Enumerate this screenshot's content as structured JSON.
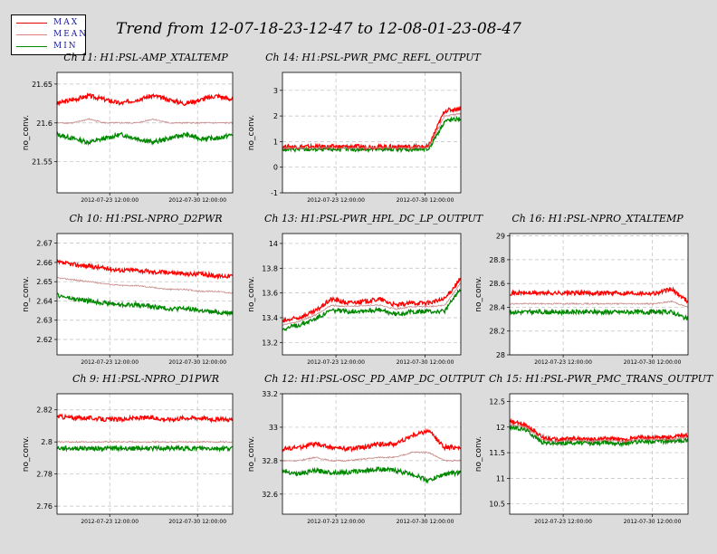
{
  "page": {
    "title": "Trend from 12-07-18-23-12-47 to 12-08-01-23-08-47"
  },
  "legend": {
    "items": [
      {
        "label": "MAX",
        "color": "#e00000"
      },
      {
        "label": "MEAN",
        "color": "#e08080"
      },
      {
        "label": "MIN",
        "color": "#008a00"
      }
    ]
  },
  "colors": {
    "max": "#ff0000",
    "mean": "#c88888",
    "min": "#008800",
    "grid": "#bdbdbd"
  },
  "shared": {
    "ylabel": "no_conv.",
    "date_ticks": [
      "2012-07-23 12:00:00",
      "2012-07-30 12:00:00"
    ]
  },
  "chart_data": [
    {
      "type": "line",
      "title": "Ch 11: H1:PSL-AMP_XTALTEMP",
      "ylabel": "no_conv.",
      "ylim": [
        21.51,
        21.665
      ],
      "yticks": [
        "21.55",
        "21.6",
        "21.65"
      ],
      "ytick_values": [
        21.55,
        21.6,
        21.65
      ],
      "grid": true,
      "series": [
        {
          "name": "MAX",
          "values": [
            21.625,
            21.63,
            21.635,
            21.63,
            21.625,
            21.63,
            21.635,
            21.63,
            21.625,
            21.63,
            21.635,
            21.63
          ]
        },
        {
          "name": "MEAN",
          "values": [
            21.6,
            21.6,
            21.605,
            21.6,
            21.6,
            21.6,
            21.605,
            21.6,
            21.6,
            21.6,
            21.6,
            21.6
          ]
        },
        {
          "name": "MIN",
          "values": [
            21.585,
            21.58,
            21.575,
            21.58,
            21.585,
            21.58,
            21.575,
            21.58,
            21.585,
            21.58,
            21.58,
            21.585
          ]
        }
      ]
    },
    {
      "type": "line",
      "title": "Ch 14: H1:PSL-PWR_PMC_REFL_OUTPUT",
      "ylabel": "no_conv.",
      "ylim": [
        -1,
        3.7
      ],
      "yticks": [
        "-1",
        "0",
        "1",
        "2",
        "3"
      ],
      "ytick_values": [
        -1,
        0,
        1,
        2,
        3
      ],
      "grid": true,
      "series": [
        {
          "name": "MAX",
          "values": [
            0.8,
            0.8,
            0.8,
            0.8,
            0.8,
            0.8,
            0.8,
            0.8,
            0.8,
            0.8,
            2.2,
            2.3
          ]
        },
        {
          "name": "MEAN",
          "values": [
            0.75,
            0.75,
            0.75,
            0.75,
            0.75,
            0.75,
            0.75,
            0.75,
            0.75,
            0.75,
            2.0,
            2.1
          ]
        },
        {
          "name": "MIN",
          "values": [
            0.7,
            0.7,
            0.7,
            0.7,
            0.7,
            0.7,
            0.7,
            0.7,
            0.7,
            0.7,
            1.8,
            1.9
          ]
        }
      ]
    },
    {
      "type": "line",
      "title": "Ch 10: H1:PSL-NPRO_D2PWR",
      "ylabel": "no_conv.",
      "ylim": [
        2.612,
        2.675
      ],
      "yticks": [
        "2.62",
        "2.63",
        "2.64",
        "2.65",
        "2.66",
        "2.67"
      ],
      "ytick_values": [
        2.62,
        2.63,
        2.64,
        2.65,
        2.66,
        2.67
      ],
      "grid": true,
      "series": [
        {
          "name": "MAX",
          "values": [
            2.66,
            2.659,
            2.658,
            2.657,
            2.656,
            2.656,
            2.655,
            2.655,
            2.654,
            2.654,
            2.653,
            2.653
          ]
        },
        {
          "name": "MEAN",
          "values": [
            2.652,
            2.651,
            2.65,
            2.649,
            2.648,
            2.648,
            2.647,
            2.646,
            2.646,
            2.645,
            2.645,
            2.644
          ]
        },
        {
          "name": "MIN",
          "values": [
            2.643,
            2.641,
            2.64,
            2.639,
            2.638,
            2.638,
            2.637,
            2.636,
            2.636,
            2.635,
            2.634,
            2.634
          ]
        }
      ]
    },
    {
      "type": "line",
      "title": "Ch 13: H1:PSL-PWR_HPL_DC_LP_OUTPUT",
      "ylabel": "no_conv.",
      "ylim": [
        13.1,
        14.08
      ],
      "yticks": [
        "13.2",
        "13.4",
        "13.6",
        "13.8",
        "14"
      ],
      "ytick_values": [
        13.2,
        13.4,
        13.6,
        13.8,
        14
      ],
      "grid": true,
      "series": [
        {
          "name": "MAX",
          "values": [
            13.37,
            13.4,
            13.45,
            13.55,
            13.52,
            13.53,
            13.55,
            13.5,
            13.52,
            13.52,
            13.55,
            13.72
          ]
        },
        {
          "name": "MEAN",
          "values": [
            13.34,
            13.37,
            13.42,
            13.5,
            13.49,
            13.5,
            13.5,
            13.47,
            13.49,
            13.49,
            13.5,
            13.68
          ]
        },
        {
          "name": "MIN",
          "values": [
            13.31,
            13.34,
            13.39,
            13.46,
            13.45,
            13.46,
            13.46,
            13.43,
            13.45,
            13.45,
            13.45,
            13.64
          ]
        }
      ]
    },
    {
      "type": "line",
      "title": "Ch 16: H1:PSL-NPRO_XTALTEMP",
      "ylabel": "no_conv.",
      "ylim": [
        28,
        29.02
      ],
      "yticks": [
        "28",
        "28.2",
        "28.4",
        "28.6",
        "28.8",
        "29"
      ],
      "ytick_values": [
        28,
        28.2,
        28.4,
        28.6,
        28.8,
        29
      ],
      "grid": true,
      "series": [
        {
          "name": "MAX",
          "values": [
            28.52,
            28.52,
            28.52,
            28.52,
            28.52,
            28.52,
            28.52,
            28.52,
            28.52,
            28.52,
            28.55,
            28.45
          ]
        },
        {
          "name": "MEAN",
          "values": [
            28.43,
            28.43,
            28.43,
            28.43,
            28.43,
            28.43,
            28.43,
            28.43,
            28.43,
            28.43,
            28.45,
            28.4
          ]
        },
        {
          "name": "MIN",
          "values": [
            28.36,
            28.36,
            28.36,
            28.36,
            28.36,
            28.36,
            28.36,
            28.36,
            28.36,
            28.36,
            28.36,
            28.3
          ]
        }
      ]
    },
    {
      "type": "line",
      "title": "Ch 9: H1:PSL-NPRO_D1PWR",
      "ylabel": "no_conv.",
      "ylim": [
        2.755,
        2.83
      ],
      "yticks": [
        "2.76",
        "2.78",
        "2.8",
        "2.82"
      ],
      "ytick_values": [
        2.76,
        2.78,
        2.8,
        2.82
      ],
      "grid": true,
      "series": [
        {
          "name": "MAX",
          "values": [
            2.816,
            2.815,
            2.815,
            2.814,
            2.814,
            2.815,
            2.815,
            2.814,
            2.815,
            2.815,
            2.814,
            2.814
          ]
        },
        {
          "name": "MEAN",
          "values": [
            2.8,
            2.8,
            2.8,
            2.8,
            2.8,
            2.8,
            2.8,
            2.8,
            2.8,
            2.8,
            2.8,
            2.8
          ]
        },
        {
          "name": "MIN",
          "values": [
            2.796,
            2.796,
            2.796,
            2.796,
            2.796,
            2.796,
            2.796,
            2.796,
            2.796,
            2.796,
            2.796,
            2.796
          ]
        }
      ]
    },
    {
      "type": "line",
      "title": "Ch 12: H1:PSL-OSC_PD_AMP_DC_OUTPUT",
      "ylabel": "no_conv.",
      "ylim": [
        32.48,
        33.2
      ],
      "yticks": [
        "32.6",
        "32.8",
        "33",
        "33.2"
      ],
      "ytick_values": [
        32.6,
        32.8,
        33,
        33.2
      ],
      "grid": true,
      "series": [
        {
          "name": "MAX",
          "values": [
            32.87,
            32.88,
            32.9,
            32.88,
            32.87,
            32.88,
            32.9,
            32.9,
            32.95,
            32.98,
            32.88,
            32.88
          ]
        },
        {
          "name": "MEAN",
          "values": [
            32.8,
            32.8,
            32.82,
            32.8,
            32.8,
            32.81,
            32.82,
            32.82,
            32.85,
            32.85,
            32.8,
            32.8
          ]
        },
        {
          "name": "MIN",
          "values": [
            32.74,
            32.72,
            32.74,
            32.73,
            32.73,
            32.74,
            32.75,
            32.74,
            32.72,
            32.68,
            32.72,
            32.73
          ]
        }
      ]
    },
    {
      "type": "line",
      "title": "Ch 15: H1:PSL-PWR_PMC_TRANS_OUTPUT",
      "ylabel": "no_conv.",
      "ylim": [
        10.3,
        12.65
      ],
      "yticks": [
        "10.5",
        "11",
        "11.5",
        "12",
        "12.5"
      ],
      "ytick_values": [
        10.5,
        11,
        11.5,
        12,
        12.5
      ],
      "grid": true,
      "series": [
        {
          "name": "MAX",
          "values": [
            12.1,
            12.05,
            11.8,
            11.75,
            11.78,
            11.75,
            11.78,
            11.75,
            11.8,
            11.8,
            11.8,
            11.85
          ]
        },
        {
          "name": "MEAN",
          "values": [
            12.05,
            12.0,
            11.75,
            11.72,
            11.75,
            11.72,
            11.75,
            11.72,
            11.76,
            11.76,
            11.76,
            11.8
          ]
        },
        {
          "name": "MIN",
          "values": [
            12.0,
            11.95,
            11.7,
            11.68,
            11.7,
            11.68,
            11.7,
            11.68,
            11.72,
            11.72,
            11.72,
            11.75
          ]
        }
      ]
    }
  ]
}
